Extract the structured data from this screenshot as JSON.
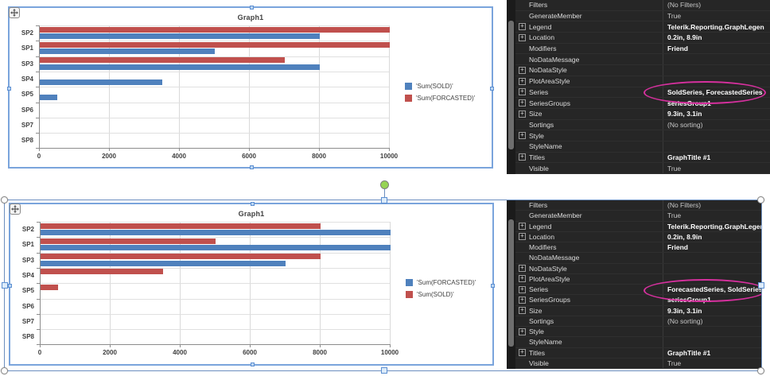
{
  "colors": {
    "series_blue": "#4f81bd",
    "series_red": "#c0504d",
    "designer_selection": "#7aa4dc",
    "annotation_pink": "#d6309e",
    "panel_bg": "#262626"
  },
  "chart_data": [
    {
      "type": "bar",
      "orientation": "horizontal",
      "title": "Graph1",
      "categories": [
        "SP2",
        "SP1",
        "SP3",
        "SP4",
        "SP5",
        "SP6",
        "SP7",
        "SP8"
      ],
      "series": [
        {
          "name": "'Sum(SOLD)'",
          "color": "#4f81bd",
          "values": [
            8000,
            5000,
            8000,
            3500,
            500,
            0,
            0,
            0
          ]
        },
        {
          "name": "'Sum(FORCASTED)'",
          "color": "#c0504d",
          "values": [
            10000,
            10000,
            7000,
            0,
            0,
            0,
            0,
            0
          ]
        }
      ],
      "x_ticks": [
        0,
        2000,
        4000,
        6000,
        8000,
        10000
      ],
      "xlim": [
        0,
        10000
      ],
      "grid": true,
      "legend_position": "right"
    },
    {
      "type": "bar",
      "orientation": "horizontal",
      "title": "Graph1",
      "categories": [
        "SP2",
        "SP1",
        "SP3",
        "SP4",
        "SP5",
        "SP6",
        "SP7",
        "SP8"
      ],
      "series": [
        {
          "name": "'Sum(FORCASTED)'",
          "color": "#4f81bd",
          "values": [
            10000,
            10000,
            7000,
            0,
            0,
            0,
            0,
            0
          ]
        },
        {
          "name": "'Sum(SOLD)'",
          "color": "#c0504d",
          "values": [
            8000,
            5000,
            8000,
            3500,
            500,
            0,
            0,
            0
          ]
        }
      ],
      "x_ticks": [
        0,
        2000,
        4000,
        6000,
        8000,
        10000
      ],
      "xlim": [
        0,
        10000
      ],
      "grid": true,
      "legend_position": "right"
    }
  ],
  "panels": [
    {
      "rows": [
        {
          "expand": false,
          "name": "Filters",
          "value": "(No Filters)",
          "bold": false
        },
        {
          "expand": false,
          "name": "GenerateMember",
          "value": "True",
          "bold": false
        },
        {
          "expand": true,
          "name": "Legend",
          "value": "Telerik.Reporting.GraphLegen",
          "bold": true
        },
        {
          "expand": true,
          "name": "Location",
          "value": "0.2in, 8.9in",
          "bold": true
        },
        {
          "expand": false,
          "name": "Modifiers",
          "value": "Friend",
          "bold": true
        },
        {
          "expand": false,
          "name": "NoDataMessage",
          "value": "",
          "bold": false
        },
        {
          "expand": true,
          "name": "NoDataStyle",
          "value": "",
          "bold": false
        },
        {
          "expand": true,
          "name": "PlotAreaStyle",
          "value": "",
          "bold": false
        },
        {
          "expand": true,
          "name": "Series",
          "value": "SoldSeries, ForecastedSeries",
          "bold": true,
          "circled": true
        },
        {
          "expand": true,
          "name": "SeriesGroups",
          "value": "seriesGroup1",
          "bold": true
        },
        {
          "expand": true,
          "name": "Size",
          "value": "9.3in, 3.1in",
          "bold": true
        },
        {
          "expand": false,
          "name": "Sortings",
          "value": "(No sorting)",
          "bold": false
        },
        {
          "expand": true,
          "name": "Style",
          "value": "",
          "bold": false
        },
        {
          "expand": false,
          "name": "StyleName",
          "value": "",
          "bold": false
        },
        {
          "expand": true,
          "name": "Titles",
          "value": "GraphTitle #1",
          "bold": true
        },
        {
          "expand": false,
          "name": "Visible",
          "value": "True",
          "bold": false
        }
      ]
    },
    {
      "rows": [
        {
          "expand": false,
          "name": "Filters",
          "value": "(No Filters)",
          "bold": false
        },
        {
          "expand": false,
          "name": "GenerateMember",
          "value": "True",
          "bold": false
        },
        {
          "expand": true,
          "name": "Legend",
          "value": "Telerik.Reporting.GraphLegen",
          "bold": true
        },
        {
          "expand": true,
          "name": "Location",
          "value": "0.2in, 8.9in",
          "bold": true
        },
        {
          "expand": false,
          "name": "Modifiers",
          "value": "Friend",
          "bold": true
        },
        {
          "expand": false,
          "name": "NoDataMessage",
          "value": "",
          "bold": false
        },
        {
          "expand": true,
          "name": "NoDataStyle",
          "value": "",
          "bold": false
        },
        {
          "expand": true,
          "name": "PlotAreaStyle",
          "value": "",
          "bold": false
        },
        {
          "expand": true,
          "name": "Series",
          "value": "ForecastedSeries, SoldSeries",
          "bold": true,
          "circled": true
        },
        {
          "expand": true,
          "name": "SeriesGroups",
          "value": "seriesGroup1",
          "bold": true
        },
        {
          "expand": true,
          "name": "Size",
          "value": "9.3in, 3.1in",
          "bold": true
        },
        {
          "expand": false,
          "name": "Sortings",
          "value": "(No sorting)",
          "bold": false
        },
        {
          "expand": true,
          "name": "Style",
          "value": "",
          "bold": false
        },
        {
          "expand": false,
          "name": "StyleName",
          "value": "",
          "bold": false
        },
        {
          "expand": true,
          "name": "Titles",
          "value": "GraphTitle #1",
          "bold": true
        },
        {
          "expand": false,
          "name": "Visible",
          "value": "True",
          "bold": false
        }
      ]
    }
  ],
  "icons": {
    "move": "move-icon",
    "expand": "+",
    "rotate_handle": "rotate-handle"
  }
}
